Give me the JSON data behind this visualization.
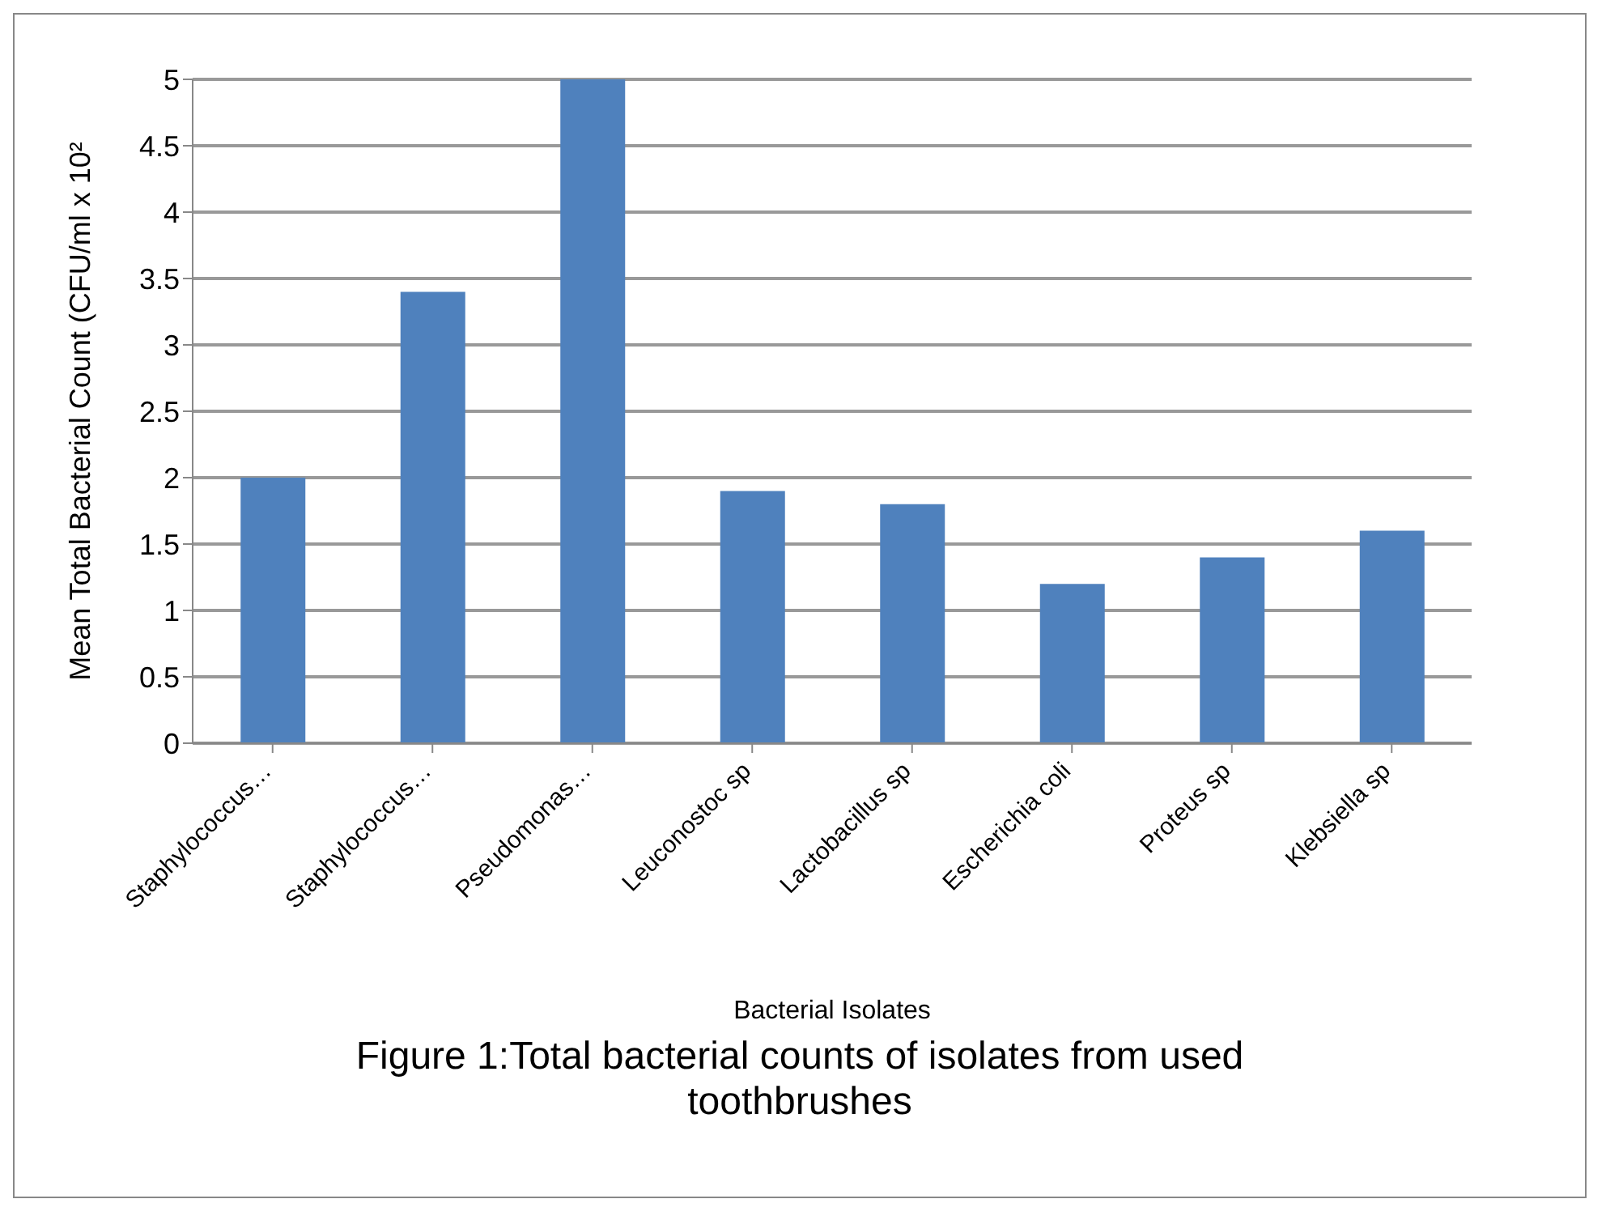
{
  "chart_data": {
    "type": "bar",
    "title": "Figure 1:Total bacterial counts of isolates from used toothbrushes",
    "xlabel": "Bacterial Isolates",
    "ylabel": "Mean Total Bacterial Count (CFU/ml x 10²",
    "categories": [
      "Staphylococcus…",
      "Staphylococcus…",
      "Pseudomonas…",
      "Leuconostoc sp",
      "Lactobacillus sp",
      "Escherichia coli",
      "Proteus sp",
      "Klebsiella sp"
    ],
    "values": [
      2,
      3.4,
      5,
      1.9,
      1.8,
      1.2,
      1.4,
      1.6
    ],
    "color": "#4f81bd",
    "ylim": [
      0,
      5
    ],
    "yticks": [
      0,
      0.5,
      1,
      1.5,
      2,
      2.5,
      3,
      3.5,
      4,
      4.5,
      5
    ],
    "grid": "y"
  }
}
